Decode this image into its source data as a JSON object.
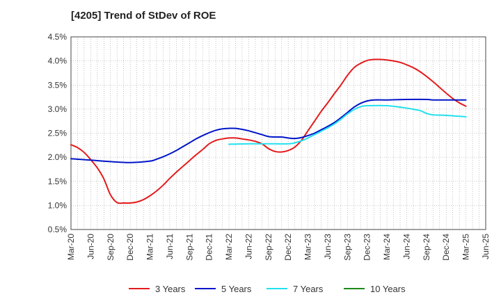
{
  "chart_data": {
    "type": "line",
    "title": "[4205]  Trend of StDev of ROE",
    "xlabel": "",
    "ylabel": "",
    "ylim": [
      0.5,
      4.5
    ],
    "y_ticks": [
      "0.5%",
      "1.0%",
      "1.5%",
      "2.0%",
      "2.5%",
      "3.0%",
      "3.5%",
      "4.0%",
      "4.5%"
    ],
    "x_ticks": [
      "Mar-20",
      "Jun-20",
      "Sep-20",
      "Dec-20",
      "Mar-21",
      "Jun-21",
      "Sep-21",
      "Dec-21",
      "Mar-22",
      "Jun-22",
      "Sep-22",
      "Dec-22",
      "Mar-23",
      "Jun-23",
      "Sep-23",
      "Dec-23",
      "Mar-24",
      "Jun-24",
      "Sep-24",
      "Dec-24",
      "Mar-25",
      "Jun-25"
    ],
    "grid": true,
    "legend_position": "bottom",
    "series": [
      {
        "name": "3 Years",
        "color": "#e31a1c",
        "points": [
          [
            "Mar-20",
            2.26
          ],
          [
            "Apr-20",
            2.2
          ],
          [
            "May-20",
            2.1
          ],
          [
            "Jun-20",
            1.95
          ],
          [
            "Jul-20",
            1.78
          ],
          [
            "Aug-20",
            1.55
          ],
          [
            "Sep-20",
            1.22
          ],
          [
            "Oct-20",
            1.06
          ],
          [
            "Nov-20",
            1.05
          ],
          [
            "Dec-20",
            1.05
          ],
          [
            "Jan-21",
            1.07
          ],
          [
            "Feb-21",
            1.12
          ],
          [
            "Mar-21",
            1.2
          ],
          [
            "Apr-21",
            1.3
          ],
          [
            "May-21",
            1.42
          ],
          [
            "Jun-21",
            1.56
          ],
          [
            "Jul-21",
            1.69
          ],
          [
            "Aug-21",
            1.81
          ],
          [
            "Sep-21",
            1.93
          ],
          [
            "Oct-21",
            2.05
          ],
          [
            "Nov-21",
            2.16
          ],
          [
            "Dec-21",
            2.28
          ],
          [
            "Jan-22",
            2.35
          ],
          [
            "Feb-22",
            2.38
          ],
          [
            "Mar-22",
            2.4
          ],
          [
            "Apr-22",
            2.4
          ],
          [
            "May-22",
            2.38
          ],
          [
            "Jun-22",
            2.36
          ],
          [
            "Jul-22",
            2.33
          ],
          [
            "Aug-22",
            2.28
          ],
          [
            "Sep-22",
            2.18
          ],
          [
            "Oct-22",
            2.12
          ],
          [
            "Nov-22",
            2.11
          ],
          [
            "Dec-22",
            2.14
          ],
          [
            "Jan-23",
            2.21
          ],
          [
            "Feb-23",
            2.35
          ],
          [
            "Mar-23",
            2.55
          ],
          [
            "Apr-23",
            2.75
          ],
          [
            "May-23",
            2.95
          ],
          [
            "Jun-23",
            3.13
          ],
          [
            "Jul-23",
            3.32
          ],
          [
            "Aug-23",
            3.5
          ],
          [
            "Sep-23",
            3.7
          ],
          [
            "Oct-23",
            3.86
          ],
          [
            "Nov-23",
            3.95
          ],
          [
            "Dec-23",
            4.01
          ],
          [
            "Jan-24",
            4.03
          ],
          [
            "Feb-24",
            4.03
          ],
          [
            "Mar-24",
            4.02
          ],
          [
            "Apr-24",
            4.0
          ],
          [
            "May-24",
            3.97
          ],
          [
            "Jun-24",
            3.92
          ],
          [
            "Jul-24",
            3.86
          ],
          [
            "Aug-24",
            3.78
          ],
          [
            "Sep-24",
            3.68
          ],
          [
            "Oct-24",
            3.57
          ],
          [
            "Nov-24",
            3.45
          ],
          [
            "Dec-24",
            3.33
          ],
          [
            "Jan-25",
            3.22
          ],
          [
            "Feb-25",
            3.13
          ],
          [
            "Mar-25",
            3.06
          ]
        ]
      },
      {
        "name": "5 Years",
        "color": "#0015c8",
        "points": [
          [
            "Mar-20",
            1.97
          ],
          [
            "Jun-20",
            1.94
          ],
          [
            "Sep-20",
            1.91
          ],
          [
            "Dec-20",
            1.89
          ],
          [
            "Mar-21",
            1.92
          ],
          [
            "Apr-21",
            1.96
          ],
          [
            "May-21",
            2.01
          ],
          [
            "Jun-21",
            2.07
          ],
          [
            "Jul-21",
            2.14
          ],
          [
            "Aug-21",
            2.22
          ],
          [
            "Sep-21",
            2.3
          ],
          [
            "Oct-21",
            2.38
          ],
          [
            "Nov-21",
            2.45
          ],
          [
            "Dec-21",
            2.51
          ],
          [
            "Jan-22",
            2.56
          ],
          [
            "Feb-22",
            2.59
          ],
          [
            "Mar-22",
            2.6
          ],
          [
            "Apr-22",
            2.6
          ],
          [
            "May-22",
            2.58
          ],
          [
            "Jun-22",
            2.55
          ],
          [
            "Jul-22",
            2.51
          ],
          [
            "Aug-22",
            2.47
          ],
          [
            "Sep-22",
            2.43
          ],
          [
            "Oct-22",
            2.42
          ],
          [
            "Nov-22",
            2.42
          ],
          [
            "Dec-22",
            2.4
          ],
          [
            "Jan-23",
            2.39
          ],
          [
            "Feb-23",
            2.41
          ],
          [
            "Mar-23",
            2.45
          ],
          [
            "Apr-23",
            2.5
          ],
          [
            "May-23",
            2.57
          ],
          [
            "Jun-23",
            2.64
          ],
          [
            "Jul-23",
            2.72
          ],
          [
            "Aug-23",
            2.82
          ],
          [
            "Sep-23",
            2.93
          ],
          [
            "Oct-23",
            3.04
          ],
          [
            "Nov-23",
            3.12
          ],
          [
            "Dec-23",
            3.17
          ],
          [
            "Jan-24",
            3.19
          ],
          [
            "Mar-24",
            3.19
          ],
          [
            "Jun-24",
            3.2
          ],
          [
            "Sep-24",
            3.2
          ],
          [
            "Oct-24",
            3.19
          ],
          [
            "Dec-24",
            3.19
          ],
          [
            "Mar-25",
            3.19
          ]
        ]
      },
      {
        "name": "7 Years",
        "color": "#22e0ee",
        "points": [
          [
            "Mar-22",
            2.27
          ],
          [
            "Jun-22",
            2.28
          ],
          [
            "Sep-22",
            2.28
          ],
          [
            "Dec-22",
            2.28
          ],
          [
            "Jan-23",
            2.3
          ],
          [
            "Feb-23",
            2.34
          ],
          [
            "Mar-23",
            2.4
          ],
          [
            "Apr-23",
            2.47
          ],
          [
            "May-23",
            2.54
          ],
          [
            "Jun-23",
            2.61
          ],
          [
            "Jul-23",
            2.69
          ],
          [
            "Aug-23",
            2.79
          ],
          [
            "Sep-23",
            2.9
          ],
          [
            "Oct-23",
            2.99
          ],
          [
            "Nov-23",
            3.05
          ],
          [
            "Dec-23",
            3.07
          ],
          [
            "Mar-24",
            3.07
          ],
          [
            "Jun-24",
            3.02
          ],
          [
            "Aug-24",
            2.97
          ],
          [
            "Sep-24",
            2.91
          ],
          [
            "Oct-24",
            2.88
          ],
          [
            "Dec-24",
            2.87
          ],
          [
            "Mar-25",
            2.84
          ]
        ]
      },
      {
        "name": "10 Years",
        "color": "#1b8a1b",
        "points": []
      }
    ]
  }
}
